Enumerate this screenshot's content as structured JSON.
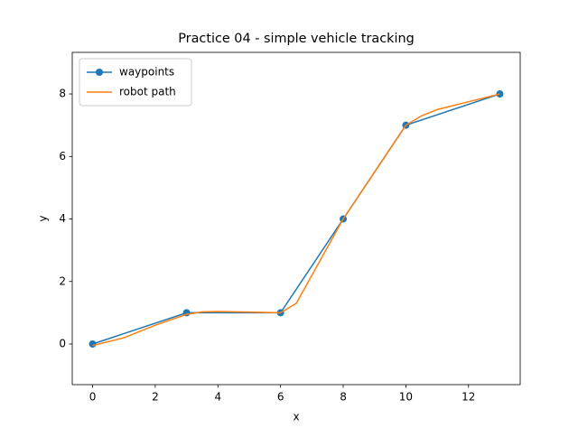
{
  "chart_data": {
    "type": "line",
    "title": "Practice 04 - simple vehicle tracking",
    "x_label": "x",
    "y_label": "y",
    "series": [
      {
        "name": "waypoints",
        "color": "#1f77b4",
        "marker": true,
        "x": [
          0,
          3,
          6,
          8,
          10,
          13
        ],
        "values": [
          0,
          1,
          1,
          4,
          7,
          8
        ]
      },
      {
        "name": "robot path",
        "color": "#ff7f0e",
        "marker": false,
        "x": [
          0,
          1,
          2,
          3,
          3.5,
          4,
          5,
          6,
          6.5,
          7,
          7.5,
          8,
          9,
          10,
          10.5,
          11,
          12,
          13
        ],
        "values": [
          -0.05,
          0.2,
          0.6,
          0.95,
          1.03,
          1.04,
          1.02,
          1.0,
          1.3,
          2.2,
          3.1,
          4.0,
          5.5,
          7.0,
          7.3,
          7.5,
          7.75,
          8.0
        ]
      }
    ],
    "xlim": [
      -0.65,
      13.65
    ],
    "ylim": [
      -1.3,
      9.33
    ],
    "xticks": [
      0,
      2,
      4,
      6,
      8,
      10,
      12
    ],
    "yticks": [
      0,
      2,
      4,
      6,
      8
    ],
    "grid": false,
    "legend": "upper left"
  }
}
